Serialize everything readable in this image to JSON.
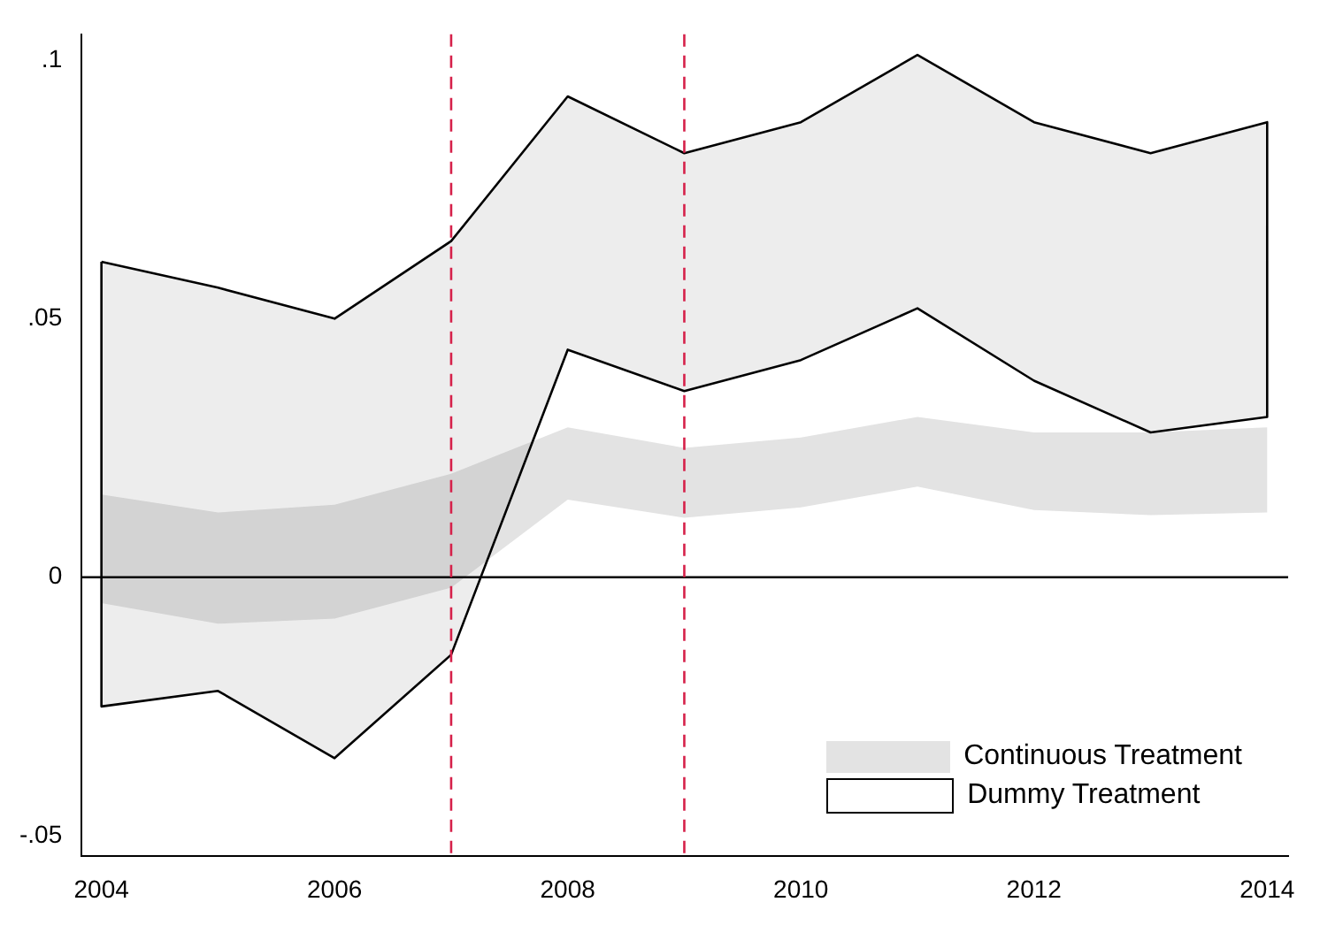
{
  "chart_data": {
    "type": "area",
    "x": [
      2004,
      2005,
      2006,
      2007,
      2008,
      2009,
      2010,
      2011,
      2012,
      2013,
      2014
    ],
    "series": [
      {
        "name": "Continuous Treatment",
        "type": "area",
        "color": "#e3e3e3",
        "values": [
          null,
          null,
          null,
          null,
          null,
          null,
          null,
          null,
          null,
          null,
          null
        ],
        "lower": [
          -0.005,
          -0.009,
          -0.008,
          -0.002,
          0.015,
          0.0115,
          0.0135,
          0.0175,
          0.013,
          0.012,
          0.0125
        ],
        "upper": [
          0.016,
          0.0125,
          0.014,
          0.02,
          0.029,
          0.025,
          0.027,
          0.031,
          0.028,
          0.028,
          0.029
        ]
      },
      {
        "name": "Dummy Treatment",
        "type": "line",
        "color": "#000000",
        "values": [
          null,
          null,
          null,
          null,
          null,
          null,
          null,
          null,
          null,
          null,
          null
        ],
        "lower": [
          -0.025,
          -0.022,
          -0.035,
          -0.015,
          0.044,
          0.036,
          0.042,
          0.052,
          0.038,
          0.028,
          0.031
        ],
        "upper": [
          0.061,
          0.056,
          0.05,
          0.065,
          0.093,
          0.082,
          0.088,
          0.101,
          0.088,
          0.082,
          0.088
        ]
      }
    ],
    "xlim": [
      2003.83,
      2014.18
    ],
    "xticks": [
      2004,
      2006,
      2008,
      2010,
      2012,
      2014
    ],
    "ylim": [
      -0.054,
      0.105
    ],
    "yticks": [
      {
        "value": -0.05,
        "label": "-.05"
      },
      {
        "value": 0,
        "label": "0"
      },
      {
        "value": 0.05,
        "label": ".05"
      },
      {
        "value": 0.1,
        "label": ".1"
      }
    ],
    "ref_lines": [
      {
        "axis": "y",
        "value": 0,
        "color": "#000000",
        "line_style": "solid"
      },
      {
        "axis": "x",
        "value": 2007,
        "color": "#d6214a",
        "line_style": "dashed"
      },
      {
        "axis": "x",
        "value": 2009,
        "color": "#d6214a",
        "line_style": "dashed"
      }
    ],
    "grid": false,
    "legend": "bottom right"
  }
}
